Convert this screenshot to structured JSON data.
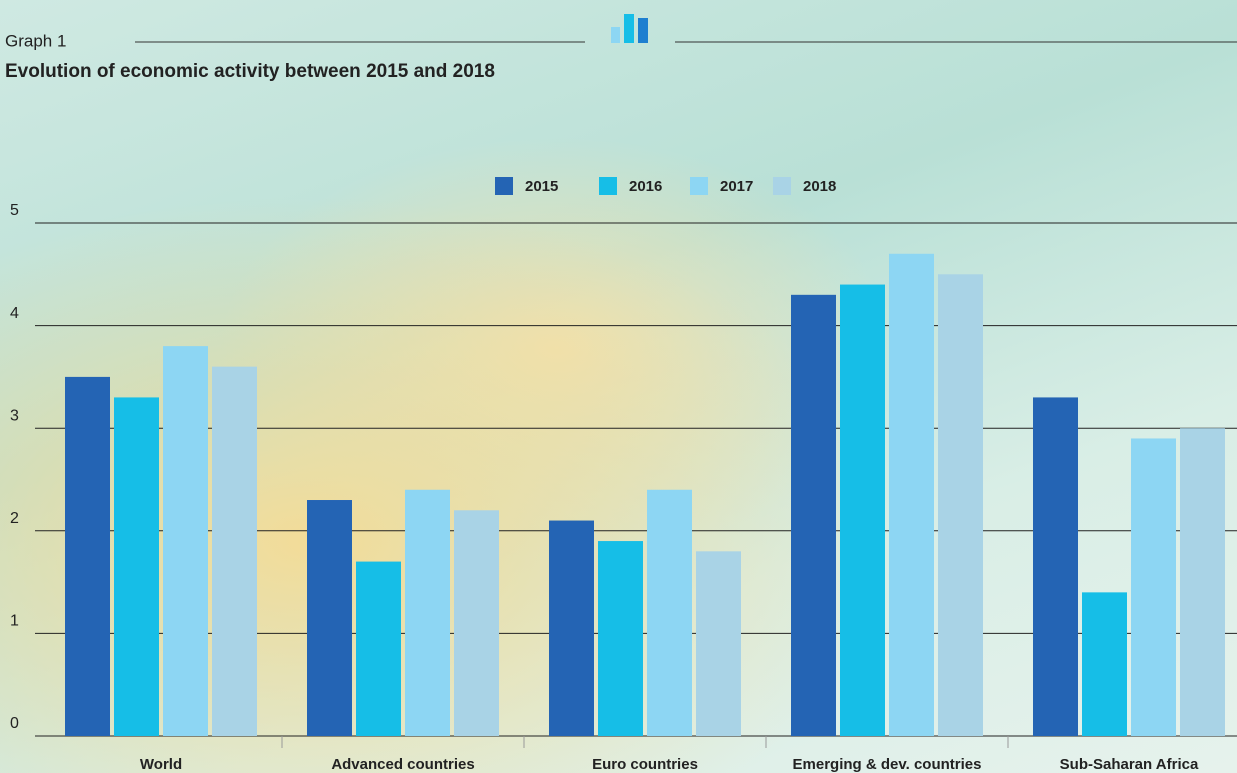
{
  "chart_data": {
    "type": "bar",
    "label": "Graph 1",
    "title": "Evolution of economic activity between 2015 and 2018",
    "categories": [
      "World",
      "Advanced countries",
      "Euro countries",
      "Emerging & dev. countries",
      "Sub-Saharan Africa"
    ],
    "series": [
      {
        "name": "2015",
        "color": "#2464b4",
        "values": [
          3.5,
          2.3,
          2.1,
          4.3,
          3.3
        ]
      },
      {
        "name": "2016",
        "color": "#16bee7",
        "values": [
          3.3,
          1.7,
          1.9,
          4.4,
          1.4
        ]
      },
      {
        "name": "2017",
        "color": "#8dd6f3",
        "values": [
          3.8,
          2.4,
          2.4,
          4.7,
          2.9
        ]
      },
      {
        "name": "2018",
        "color": "#a9d3e6",
        "values": [
          3.6,
          2.2,
          1.8,
          4.5,
          3.0
        ]
      }
    ],
    "ylim": [
      0,
      5
    ],
    "yticks": [
      0,
      1,
      2,
      3,
      4,
      5
    ],
    "grid": true
  }
}
